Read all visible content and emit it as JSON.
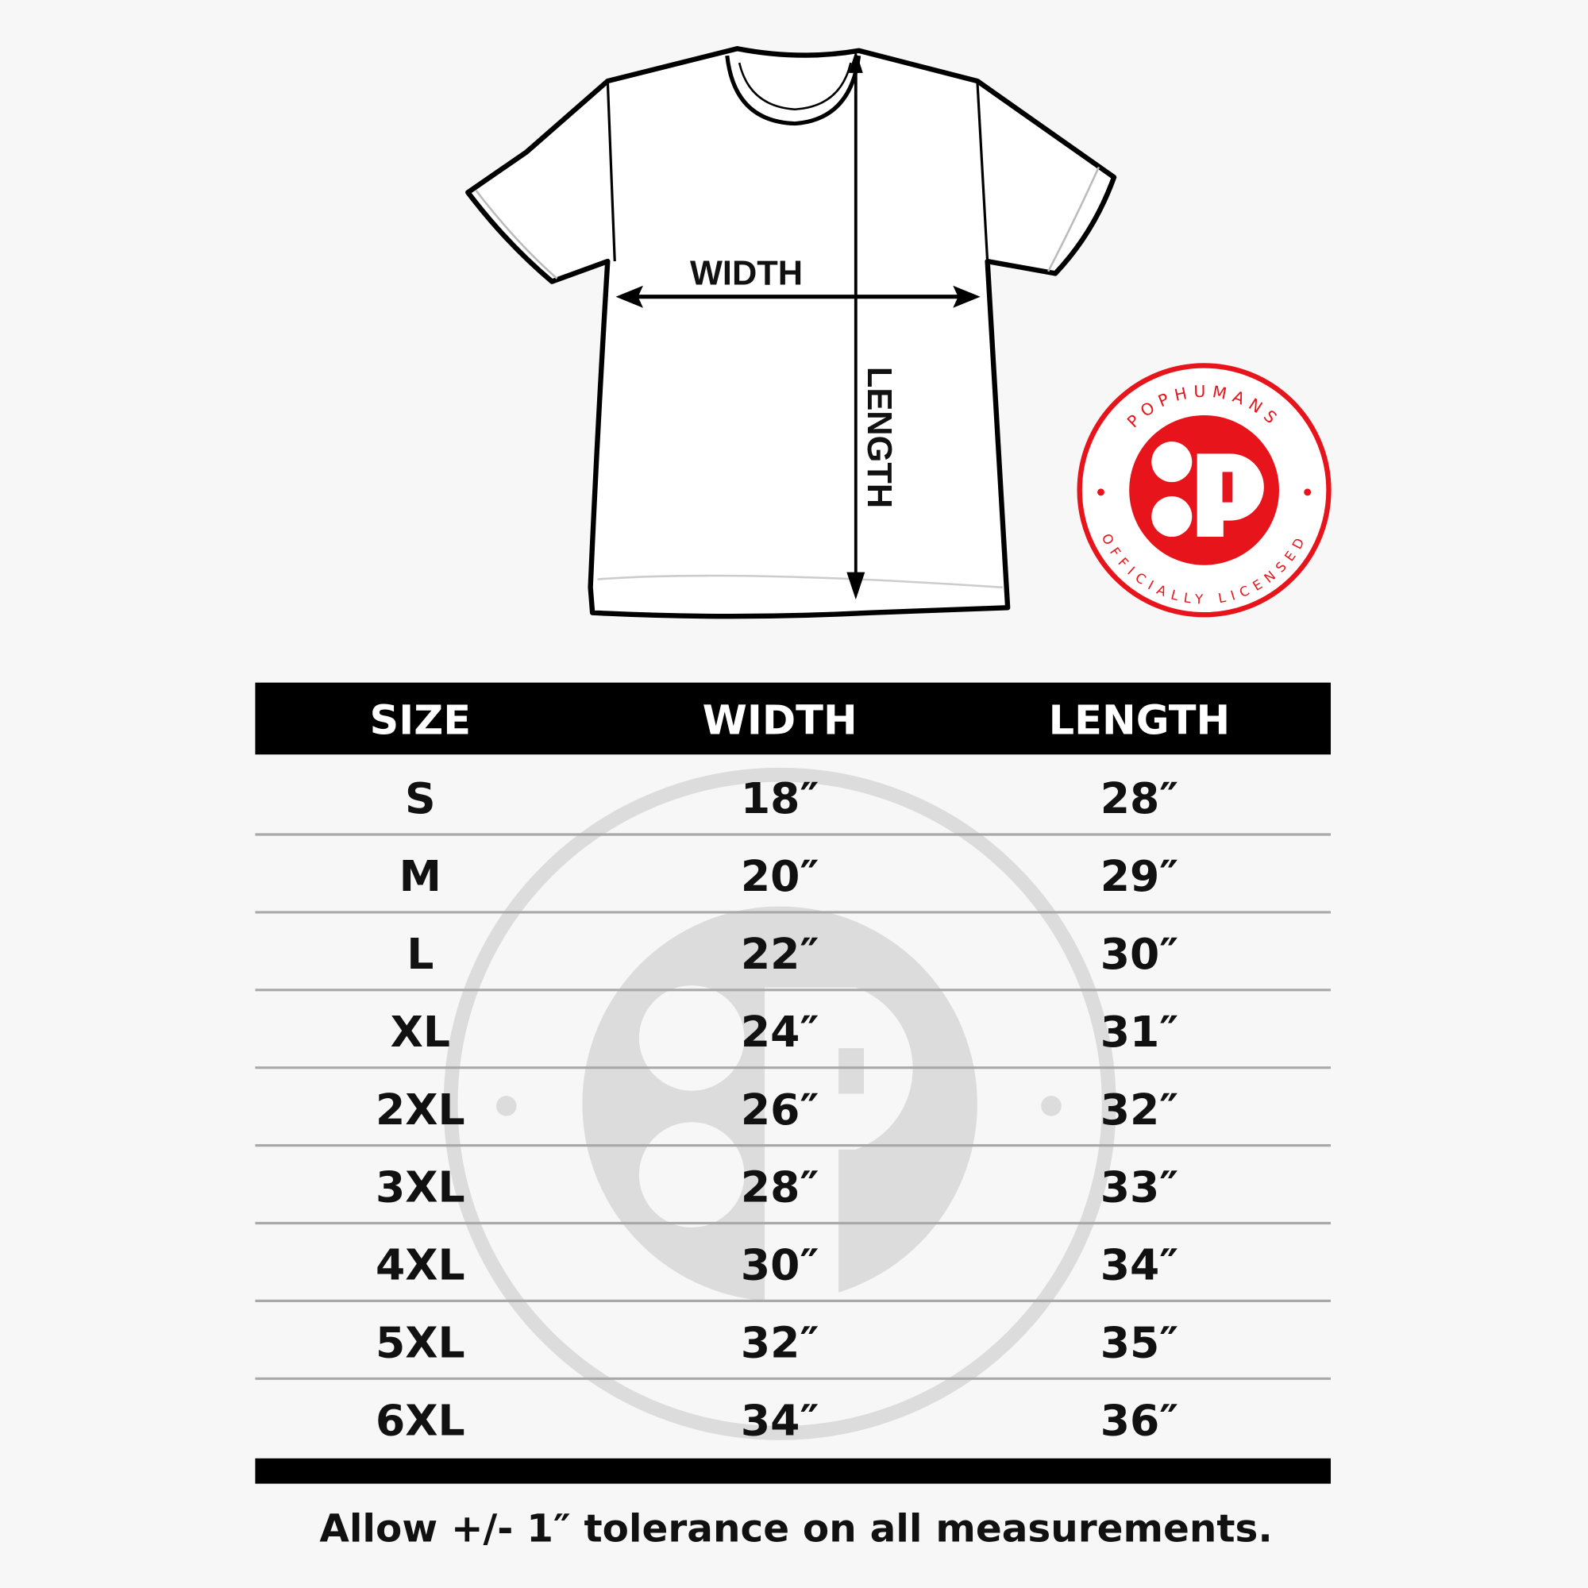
{
  "colors": {
    "background": "#f7f7f7",
    "header_bg": "#000000",
    "brand_red": "#e8141b",
    "watermark": "#dcdcdc"
  },
  "diagram": {
    "width_label": "WIDTH",
    "length_label": "LENGTH"
  },
  "badge": {
    "top_text": "POPHUMANS",
    "bottom_text": "OFFICIALLY LICENSED",
    "icon": "pophumans-logo"
  },
  "table": {
    "headers": [
      "SIZE",
      "WIDTH",
      "LENGTH"
    ],
    "rows": [
      [
        "S",
        "18″",
        "28″"
      ],
      [
        "M",
        "20″",
        "29″"
      ],
      [
        "L",
        "22″",
        "30″"
      ],
      [
        "XL",
        "24″",
        "31″"
      ],
      [
        "2XL",
        "26″",
        "32″"
      ],
      [
        "3XL",
        "28″",
        "33″"
      ],
      [
        "4XL",
        "30″",
        "34″"
      ],
      [
        "5XL",
        "32″",
        "35″"
      ],
      [
        "6XL",
        "34″",
        "36″"
      ]
    ]
  },
  "footer": {
    "note": "Allow +/- 1″ tolerance on all measurements."
  }
}
